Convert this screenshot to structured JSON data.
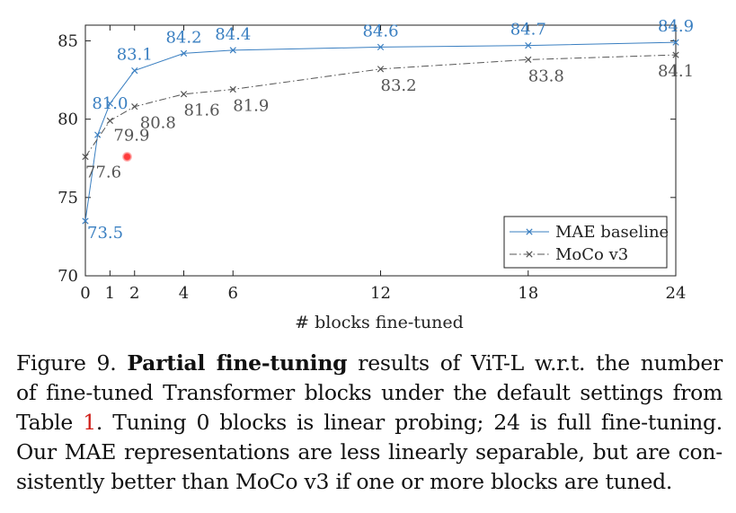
{
  "chart_data": {
    "type": "line",
    "title": "",
    "xlabel": "# blocks fine-tuned",
    "ylabel": "",
    "x": [
      0,
      1,
      2,
      4,
      6,
      12,
      18,
      24
    ],
    "xticks": [
      0,
      1,
      2,
      4,
      6,
      12,
      18,
      24
    ],
    "yticks": [
      70,
      75,
      80,
      85
    ],
    "xlim": [
      0,
      24
    ],
    "ylim": [
      70,
      86
    ],
    "grid": false,
    "legend_position": "bottom-right",
    "series": [
      {
        "name": "MAE baseline",
        "color": "#3a7fc1",
        "line_style": "solid",
        "marker": "x",
        "x": [
          0,
          1,
          2,
          4,
          6,
          12,
          18,
          24
        ],
        "values": [
          73.5,
          81.0,
          83.1,
          84.2,
          84.4,
          84.6,
          84.7,
          84.9
        ],
        "labels": [
          "73.5",
          "",
          "83.1",
          "84.2",
          "84.4",
          "84.6",
          "84.7",
          "84.9"
        ]
      },
      {
        "name": "MoCo v3",
        "color": "#555555",
        "line_style": "dash-dot",
        "marker": "x",
        "x": [
          0,
          1,
          2,
          4,
          6,
          12,
          18,
          24
        ],
        "values": [
          77.6,
          79.9,
          80.8,
          81.6,
          81.9,
          83.2,
          83.8,
          84.1
        ],
        "labels": [
          "77.6",
          "79.9",
          "80.8",
          "81.6",
          "81.9",
          "83.2",
          "83.8",
          "84.1"
        ]
      }
    ],
    "extra_points": [
      {
        "series": "MAE baseline",
        "x": 0.5,
        "y": 79.0,
        "label": ""
      }
    ],
    "annotations": [
      {
        "series": "MAE baseline",
        "x": 1,
        "y": 81.0,
        "text": "81.0"
      }
    ]
  },
  "caption": {
    "lines": [
      {
        "prefix": "Figure 9. ",
        "bold": "Partial fine-tuning",
        "rest": " results of ViT-L w.r.t. the number"
      },
      {
        "text": "of fine-tuned Transformer blocks under the default settings from"
      },
      {
        "pre": "Table ",
        "ref": "1",
        "post": ". Tuning 0 blocks is linear probing; 24 is full fine-tuning."
      },
      {
        "text": "Our MAE representations are less linearly separable, but are con-"
      },
      {
        "text": "sistently better than MoCo v3 if one or more blocks are tuned."
      }
    ]
  },
  "colors": {
    "mae": "#3a7fc1",
    "moco": "#555555",
    "reference": "#d0201a",
    "cursor": "#ff3b3b"
  }
}
